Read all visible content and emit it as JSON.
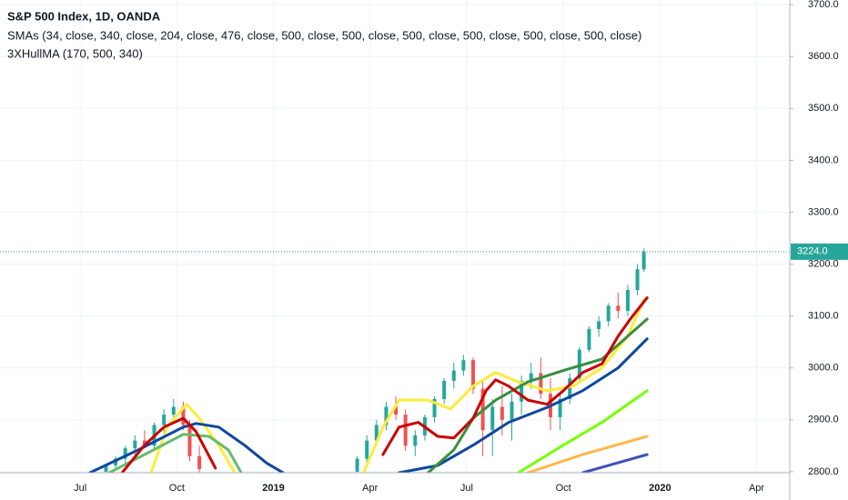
{
  "chart_data": {
    "type": "candlestick",
    "title": "S&P 500 Index, 1D, OANDA",
    "subtitle": "SMAs (34, close, 340, close, 204, close, 476, close, 500, close, 500, close, 500, close, 500, close, 500, close, 500, close)",
    "annotation": "3XHullMA (170, 500, 340)",
    "xlim": [
      -2.49,
      22.03
    ],
    "ylim": [
      2798,
      3709
    ],
    "xticks": [
      {
        "value": 0,
        "label": "Jul"
      },
      {
        "value": 3,
        "label": "Oct"
      },
      {
        "value": 6,
        "label": "2019"
      },
      {
        "value": 9,
        "label": "Apr"
      },
      {
        "value": 12,
        "label": "Jul"
      },
      {
        "value": 15,
        "label": "Oct"
      },
      {
        "value": 18,
        "label": "2020"
      },
      {
        "value": 21,
        "label": "Apr"
      }
    ],
    "yticks": [
      {
        "value": 2800,
        "label": "2800.0"
      },
      {
        "value": 2900,
        "label": "2900.0"
      },
      {
        "value": 3000,
        "label": "3000.0"
      },
      {
        "value": 3100,
        "label": "3100.0"
      },
      {
        "value": 3200,
        "label": "3200.0"
      },
      {
        "value": 3300,
        "label": "3300.0"
      },
      {
        "value": 3400,
        "label": "3400.0"
      },
      {
        "value": 3500,
        "label": "3500.0"
      },
      {
        "value": 3600,
        "label": "3600.0"
      },
      {
        "value": 3700,
        "label": "3700.0"
      }
    ],
    "grid": true,
    "last_price": {
      "value": 3224,
      "label": "3224.0",
      "color": "#26a69a"
    },
    "candles": {
      "up_color": "#26a69a",
      "down_color": "#ef5350",
      "x": [
        0.8,
        1.1,
        1.4,
        1.7,
        2.0,
        2.3,
        2.6,
        2.9,
        3.2,
        3.4,
        3.7,
        8.6,
        8.9,
        9.2,
        9.5,
        9.8,
        10.1,
        10.4,
        10.7,
        11.0,
        11.3,
        11.6,
        11.9,
        12.2,
        12.5,
        12.8,
        13.1,
        13.4,
        13.7,
        14.0,
        14.3,
        14.6,
        14.9,
        15.2,
        15.5,
        15.8,
        16.1,
        16.4,
        16.7,
        17.0,
        17.3,
        17.5
      ],
      "open": [
        2800,
        2812,
        2825,
        2845,
        2860,
        2850,
        2890,
        2910,
        2925,
        2890,
        2830,
        2800,
        2825,
        2860,
        2890,
        2925,
        2910,
        2850,
        2870,
        2905,
        2940,
        2975,
        2995,
        3015,
        2960,
        2880,
        2925,
        2900,
        2935,
        2975,
        2990,
        2950,
        2905,
        2940,
        2980,
        3035,
        3075,
        3090,
        3120,
        3110,
        3150,
        3190
      ],
      "high": [
        2815,
        2830,
        2850,
        2870,
        2880,
        2895,
        2920,
        2940,
        2935,
        2900,
        2850,
        2830,
        2870,
        2900,
        2935,
        2945,
        2920,
        2880,
        2910,
        2945,
        2980,
        3010,
        3025,
        3020,
        2975,
        2940,
        2965,
        2950,
        2985,
        3010,
        3020,
        2980,
        2950,
        2990,
        3040,
        3080,
        3100,
        3125,
        3145,
        3160,
        3200,
        3230
      ],
      "low": [
        2798,
        2805,
        2815,
        2830,
        2845,
        2845,
        2875,
        2900,
        2880,
        2820,
        2798,
        2798,
        2815,
        2850,
        2880,
        2900,
        2840,
        2830,
        2860,
        2895,
        2930,
        2960,
        2985,
        2950,
        2830,
        2830,
        2870,
        2860,
        2910,
        2960,
        2940,
        2880,
        2880,
        2930,
        2970,
        3030,
        3060,
        3080,
        3095,
        3100,
        3140,
        3185
      ],
      "close": [
        2812,
        2825,
        2845,
        2860,
        2850,
        2890,
        2910,
        2925,
        2890,
        2830,
        2805,
        2825,
        2860,
        2890,
        2925,
        2910,
        2850,
        2870,
        2905,
        2940,
        2975,
        2995,
        3015,
        2960,
        2880,
        2925,
        2900,
        2935,
        2975,
        2990,
        2950,
        2905,
        2940,
        2980,
        3035,
        3075,
        3090,
        3120,
        3110,
        3150,
        3190,
        3224
      ]
    },
    "series": [
      {
        "color": "#ffeb3b",
        "x": [
          2.2,
          2.7,
          3.3,
          3.7,
          4.3,
          4.8,
          null,
          8.8,
          9.4,
          9.9,
          10.8,
          11.5,
          12.2,
          12.9,
          13.6,
          14.5,
          15.3,
          16.2,
          17.0,
          17.5
        ],
        "values": [
          2798,
          2886,
          2930,
          2903,
          2851,
          2798,
          null,
          2798,
          2886,
          2938,
          2938,
          2921,
          2965,
          2991,
          2973,
          2956,
          2965,
          3000,
          3061,
          3131
        ]
      },
      {
        "color": "#66bb6a",
        "x": [
          0.9,
          2.0,
          3.2,
          4.0,
          4.6,
          5.0
        ],
        "values": [
          2798,
          2833,
          2872,
          2868,
          2842,
          2798
        ]
      },
      {
        "color": "#0d47a1",
        "x": [
          0.3,
          1.8,
          3.2,
          3.6,
          4.3,
          5.1,
          5.8,
          6.3,
          null,
          9.9,
          11.1,
          12.2,
          13.3,
          14.5,
          15.6,
          16.7,
          17.6
        ],
        "values": [
          2798,
          2842,
          2886,
          2893,
          2886,
          2851,
          2816,
          2798,
          null,
          2798,
          2812,
          2851,
          2895,
          2924,
          2956,
          3000,
          3056
        ]
      },
      {
        "color": "#388e3c",
        "x": [
          10.8,
          11.6,
          12.2,
          12.9,
          13.9,
          15.0,
          16.2,
          17.0,
          17.6
        ],
        "values": [
          2798,
          2842,
          2903,
          2938,
          2973,
          2995,
          3017,
          3061,
          3094
        ]
      },
      {
        "color": "#76ff03",
        "x": [
          13.6,
          15.0,
          16.2,
          17.6
        ],
        "values": [
          2798,
          2851,
          2895,
          2956
        ]
      },
      {
        "color": "#ffb74d",
        "x": [
          13.9,
          15.6,
          17.6
        ],
        "values": [
          2798,
          2833,
          2868
        ]
      },
      {
        "color": "#3f51b5",
        "x": [
          15.6,
          17.6
        ],
        "values": [
          2798,
          2833
        ]
      },
      {
        "color": "#cc0000",
        "x": [
          1.3,
          2.0,
          2.6,
          3.2,
          3.6,
          4.2,
          null,
          9.4,
          9.9,
          10.5,
          11.1,
          11.6,
          12.2,
          12.6,
          12.9,
          13.3,
          13.9,
          14.5,
          15.0,
          15.6,
          16.2,
          16.7,
          17.1,
          17.6
        ],
        "values": [
          2798,
          2851,
          2886,
          2903,
          2877,
          2807,
          null,
          2833,
          2886,
          2895,
          2868,
          2865,
          2903,
          2956,
          2977,
          2965,
          2938,
          2930,
          2956,
          2991,
          3008,
          3061,
          3096,
          3135
        ]
      }
    ]
  }
}
